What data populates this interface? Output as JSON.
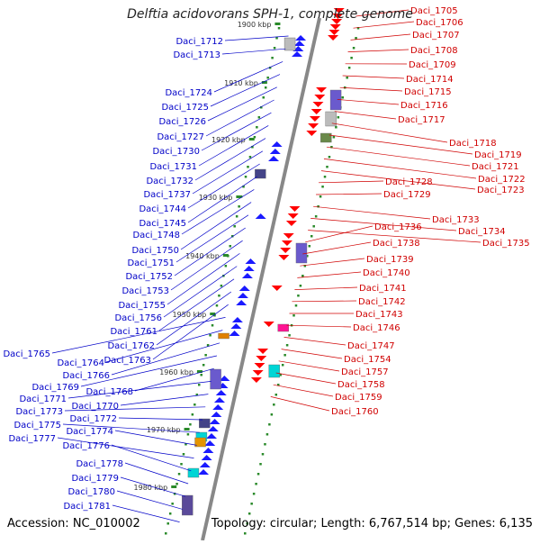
{
  "title": "Delftia acidovorans SPH-1, complete genome",
  "footer": {
    "accession": "Accession: NC_010002",
    "topology": "Topology: circular; Length: 6,767,514 bp; Genes: 6,135"
  },
  "colors": {
    "left_label": "#0000c8",
    "right_label": "#d00000",
    "axis": "#888888",
    "tick": "#2a8a2a"
  },
  "scale_labels": [
    "1900 kbp",
    "1910 kbp",
    "1920 kbp",
    "1930 kbp",
    "1940 kbp",
    "1950 kbp",
    "1960 kbp",
    "1970 kbp",
    "1980 kbp"
  ],
  "left_genes": [
    "Daci_1712",
    "Daci_1713",
    "Daci_1724",
    "Daci_1725",
    "Daci_1726",
    "Daci_1727",
    "Daci_1730",
    "Daci_1731",
    "Daci_1732",
    "Daci_1737",
    "Daci_1744",
    "Daci_1745",
    "Daci_1748",
    "Daci_1750",
    "Daci_1751",
    "Daci_1752",
    "Daci_1753",
    "Daci_1755",
    "Daci_1756",
    "Daci_1761",
    "Daci_1762",
    "Daci_1763",
    "Daci_1765",
    "Daci_1764",
    "Daci_1766",
    "Daci_1769",
    "Daci_1768",
    "Daci_1771",
    "Daci_1770",
    "Daci_1773",
    "Daci_1772",
    "Daci_1775",
    "Daci_1774",
    "Daci_1777",
    "Daci_1776",
    "Daci_1778",
    "Daci_1779",
    "Daci_1780",
    "Daci_1781"
  ],
  "right_genes": [
    "Daci_1705",
    "Daci_1706",
    "Daci_1707",
    "Daci_1708",
    "Daci_1709",
    "Daci_1714",
    "Daci_1715",
    "Daci_1716",
    "Daci_1717",
    "Daci_1718",
    "Daci_1719",
    "Daci_1721",
    "Daci_1722",
    "Daci_1723",
    "Daci_1728",
    "Daci_1729",
    "Daci_1733",
    "Daci_1734",
    "Daci_1735",
    "Daci_1736",
    "Daci_1738",
    "Daci_1739",
    "Daci_1740",
    "Daci_1741",
    "Daci_1742",
    "Daci_1743",
    "Daci_1746",
    "Daci_1747",
    "Daci_1754",
    "Daci_1757",
    "Daci_1758",
    "Daci_1759",
    "Daci_1760"
  ]
}
